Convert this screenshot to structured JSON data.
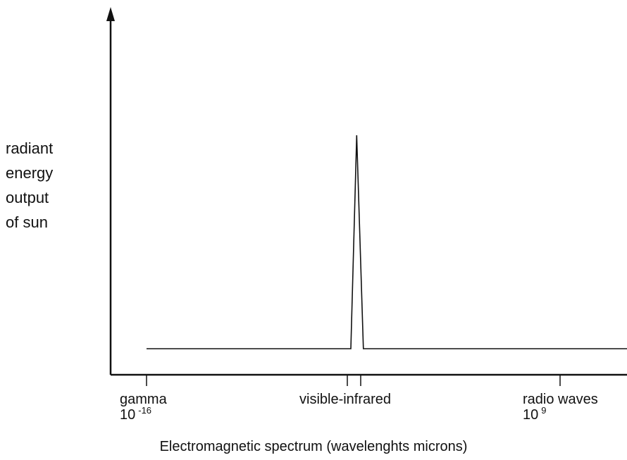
{
  "chart_data": {
    "type": "line",
    "title": "",
    "xlabel": "Electromagnetic spectrum (wavelenghts microns)",
    "ylabel_lines": [
      "radiant",
      "energy",
      "output",
      "of sun"
    ],
    "ticks": [
      {
        "name": "gamma",
        "exp_base": "10",
        "exp_power": "-16"
      },
      {
        "name": "visible-infrared",
        "exp_base": "",
        "exp_power": ""
      },
      {
        "name": "radio waves",
        "exp_base": "10",
        "exp_power": "9"
      }
    ],
    "series": [
      {
        "x": [
          0,
          0.489,
          0.503,
          0.519,
          1.15
        ],
        "y": [
          0,
          0,
          1,
          0,
          0
        ]
      }
    ],
    "xlim": [
      0,
      1.15
    ],
    "ylim": [
      0,
      1
    ],
    "grid": false,
    "legend": "none",
    "line_color": "#111111"
  }
}
